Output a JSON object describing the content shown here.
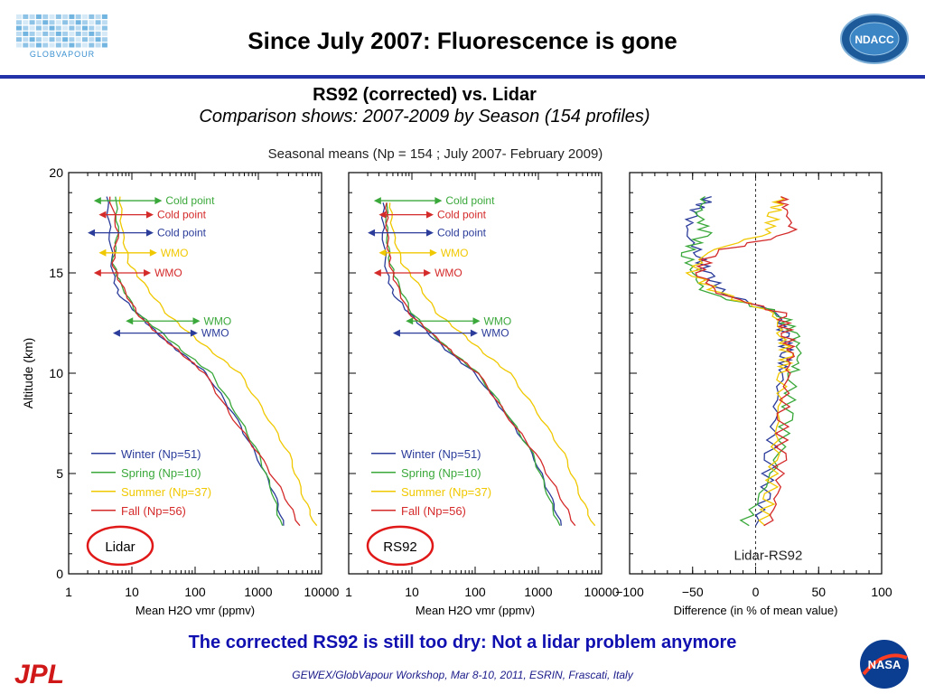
{
  "header": {
    "title": "Since July 2007: Fluorescence is gone",
    "logo_left_text": "GLOBVAPOUR",
    "logo_right_text": "NDACC"
  },
  "subtitle": {
    "line1": "RS92 (corrected) vs. Lidar",
    "line2": "Comparison shows: 2007-2009 by Season (154 profiles)"
  },
  "figure_title": "Seasonal means   (Np = 154 ; July 2007- February 2009)",
  "bottom_message": "The corrected RS92 is still too dry: Not a lidar problem anymore",
  "footer": {
    "citation": "GEWEX/GlobVapour Workshop, Mar 8-10, 2011, ESRIN, Frascati, Italy",
    "logo_left_text": "JPL",
    "logo_right_text": "NASA"
  },
  "colors": {
    "winter": "#2b3c9a",
    "spring": "#3aa83a",
    "summer": "#f0c800",
    "fall": "#d42a2a",
    "rule": "#2233aa",
    "circle": "#e01818"
  },
  "chart_data": [
    {
      "type": "line",
      "panel_label": "Lidar",
      "xscale": "log",
      "xlim": [
        1,
        10000
      ],
      "ylim": [
        0,
        20
      ],
      "xticks": [
        "1",
        "10",
        "100",
        "1000",
        "10000"
      ],
      "yticks": [
        "0",
        "5",
        "10",
        "15",
        "20"
      ],
      "xlabel": "Mean H2O vmr (ppmv)",
      "ylabel": "Altitude (km)",
      "legend": [
        "Winter (Np=51)",
        "Spring (Np=10)",
        "Summer (Np=37)",
        "Fall (Np=56)"
      ],
      "annotations": [
        {
          "text": "Cold point",
          "season": "spring",
          "altitude": 18.6,
          "x_range": [
            2.5,
            30
          ]
        },
        {
          "text": "Cold point",
          "season": "fall",
          "altitude": 17.9,
          "x_range": [
            3,
            22
          ]
        },
        {
          "text": "Cold point",
          "season": "winter",
          "altitude": 17.0,
          "x_range": [
            2,
            22
          ]
        },
        {
          "text": "WMO",
          "season": "summer",
          "altitude": 16.0,
          "x_range": [
            3,
            25
          ]
        },
        {
          "text": "WMO",
          "season": "fall",
          "altitude": 15.0,
          "x_range": [
            2.5,
            20
          ]
        },
        {
          "text": "WMO",
          "season": "spring",
          "altitude": 12.6,
          "x_range": [
            8,
            120
          ]
        },
        {
          "text": "WMO",
          "season": "winter",
          "altitude": 12.0,
          "x_range": [
            5,
            110
          ]
        }
      ],
      "series": [
        {
          "name": "Winter (Np=51)",
          "season": "winter",
          "x": [
            2500,
            1800,
            900,
            400,
            150,
            60,
            25,
            12,
            6,
            5,
            4.5,
            4
          ],
          "y": [
            2.4,
            4,
            6,
            8,
            10,
            11,
            12,
            13,
            14,
            15,
            17,
            18.8
          ]
        },
        {
          "name": "Spring (Np=10)",
          "season": "spring",
          "x": [
            2300,
            1700,
            1000,
            450,
            180,
            70,
            30,
            12,
            6.5,
            5,
            6,
            5.5
          ],
          "y": [
            2.4,
            4,
            6,
            8,
            10,
            11,
            12,
            13,
            14.5,
            15.5,
            17,
            18.8
          ]
        },
        {
          "name": "Summer (Np=37)",
          "season": "summer",
          "x": [
            8000,
            5000,
            3000,
            1300,
            500,
            200,
            80,
            35,
            15,
            9,
            7,
            6.5
          ],
          "y": [
            2.4,
            4,
            6,
            8,
            10,
            11,
            12,
            13,
            14.5,
            15.5,
            17,
            18.8
          ]
        },
        {
          "name": "Fall (Np=56)",
          "season": "fall",
          "x": [
            4500,
            2500,
            1000,
            350,
            140,
            60,
            25,
            12,
            6.5,
            5,
            6,
            4.5
          ],
          "y": [
            2.4,
            4,
            6,
            8,
            10,
            11,
            12,
            13,
            14.5,
            15.5,
            17,
            18.8
          ]
        }
      ]
    },
    {
      "type": "line",
      "panel_label": "RS92",
      "xscale": "log",
      "xlim": [
        1,
        10000
      ],
      "ylim": [
        0,
        20
      ],
      "xticks": [
        "1",
        "10",
        "100",
        "1000",
        "10000"
      ],
      "xlabel": "Mean H2O vmr (ppmv)",
      "legend": [
        "Winter (Np=51)",
        "Spring (Np=10)",
        "Summer (Np=37)",
        "Fall (Np=56)"
      ],
      "annotations": [
        {
          "text": "Cold point",
          "season": "spring",
          "altitude": 18.6,
          "x_range": [
            2.5,
            30
          ]
        },
        {
          "text": "Cold point",
          "season": "fall",
          "altitude": 17.9,
          "x_range": [
            3,
            22
          ]
        },
        {
          "text": "Cold point",
          "season": "winter",
          "altitude": 17.0,
          "x_range": [
            2,
            22
          ]
        },
        {
          "text": "WMO",
          "season": "summer",
          "altitude": 16.0,
          "x_range": [
            3,
            25
          ]
        },
        {
          "text": "WMO",
          "season": "fall",
          "altitude": 15.0,
          "x_range": [
            2.5,
            20
          ]
        },
        {
          "text": "WMO",
          "season": "spring",
          "altitude": 12.6,
          "x_range": [
            8,
            120
          ]
        },
        {
          "text": "WMO",
          "season": "winter",
          "altitude": 12.0,
          "x_range": [
            5,
            110
          ]
        }
      ],
      "series": [
        {
          "name": "Winter (Np=51)",
          "season": "winter",
          "x": [
            2300,
            1500,
            800,
            300,
            100,
            40,
            18,
            9,
            5,
            4,
            3.5,
            3.5
          ],
          "y": [
            2.4,
            4,
            6,
            8,
            10,
            11,
            12,
            13,
            14,
            15,
            17,
            18.5
          ]
        },
        {
          "name": "Spring (Np=10)",
          "season": "spring",
          "x": [
            2100,
            1400,
            800,
            320,
            110,
            45,
            20,
            10,
            6,
            4.5,
            4,
            4
          ],
          "y": [
            2.4,
            4,
            6,
            8,
            10,
            11,
            12,
            13,
            14.5,
            15.5,
            17,
            18.5
          ]
        },
        {
          "name": "Summer (Np=37)",
          "season": "summer",
          "x": [
            7500,
            4500,
            2500,
            1000,
            350,
            140,
            60,
            25,
            12,
            7,
            5,
            4.5
          ],
          "y": [
            2.4,
            4,
            6,
            8,
            10,
            11,
            12,
            13,
            14.5,
            15.5,
            17,
            18.5
          ]
        },
        {
          "name": "Fall (Np=56)",
          "season": "fall",
          "x": [
            3800,
            2100,
            900,
            300,
            110,
            45,
            20,
            9,
            5.5,
            4.5,
            4,
            4
          ],
          "y": [
            2.4,
            4,
            6,
            8,
            10,
            11,
            12,
            13,
            14.5,
            15.5,
            17,
            18.5
          ]
        }
      ]
    },
    {
      "type": "line",
      "panel_label": "Lidar-RS92",
      "xlim": [
        -100,
        100
      ],
      "ylim": [
        0,
        20
      ],
      "xticks": [
        "−100",
        "−50",
        "0",
        "50",
        "100"
      ],
      "xlabel": "Difference (in % of mean value)",
      "reference_line": 0,
      "series": [
        {
          "season": "winter",
          "x": [
            0,
            8,
            12,
            15,
            20,
            25,
            22,
            18,
            -25,
            -40,
            -45,
            -55,
            -50,
            -35
          ],
          "y": [
            2.4,
            4,
            6,
            8,
            10,
            11,
            12,
            13,
            14,
            15,
            16,
            17,
            18,
            18.8
          ]
        },
        {
          "season": "spring",
          "x": [
            -10,
            5,
            20,
            25,
            30,
            35,
            30,
            20,
            -40,
            -50,
            -55,
            -40,
            -45,
            -40
          ],
          "y": [
            2.4,
            4,
            6,
            8,
            10,
            11,
            12,
            13,
            14,
            15,
            16,
            17,
            18,
            18.8
          ]
        },
        {
          "season": "summer",
          "x": [
            5,
            12,
            15,
            18,
            22,
            25,
            20,
            15,
            -30,
            -50,
            -40,
            10,
            15,
            20
          ],
          "y": [
            2.4,
            4,
            6,
            8,
            10,
            11,
            12,
            13,
            14,
            15,
            16,
            17,
            18,
            18.8
          ]
        },
        {
          "season": "fall",
          "x": [
            10,
            18,
            20,
            22,
            25,
            28,
            25,
            20,
            -30,
            -45,
            -35,
            30,
            25,
            20
          ],
          "y": [
            2.4,
            4,
            6,
            8,
            10,
            11,
            12,
            13,
            14,
            15,
            16,
            17,
            18,
            18.8
          ]
        }
      ]
    }
  ]
}
